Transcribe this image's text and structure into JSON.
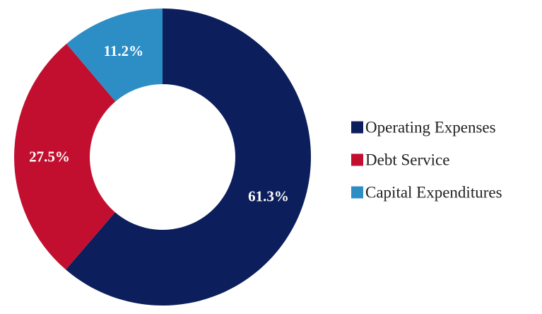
{
  "chart_data": {
    "type": "pie",
    "style": "donut",
    "slices": [
      {
        "label": "Operating Expenses",
        "value": 61.3,
        "display": "61.3%",
        "color": "#0c1f5c"
      },
      {
        "label": "Debt Service",
        "value": 27.5,
        "display": "27.5%",
        "color": "#c20f2f"
      },
      {
        "label": "Capital Expenditures",
        "value": 11.2,
        "display": "11.2%",
        "color": "#2d8ec6"
      }
    ],
    "start_angle": "top",
    "direction": "clockwise",
    "legend_position": "right"
  }
}
